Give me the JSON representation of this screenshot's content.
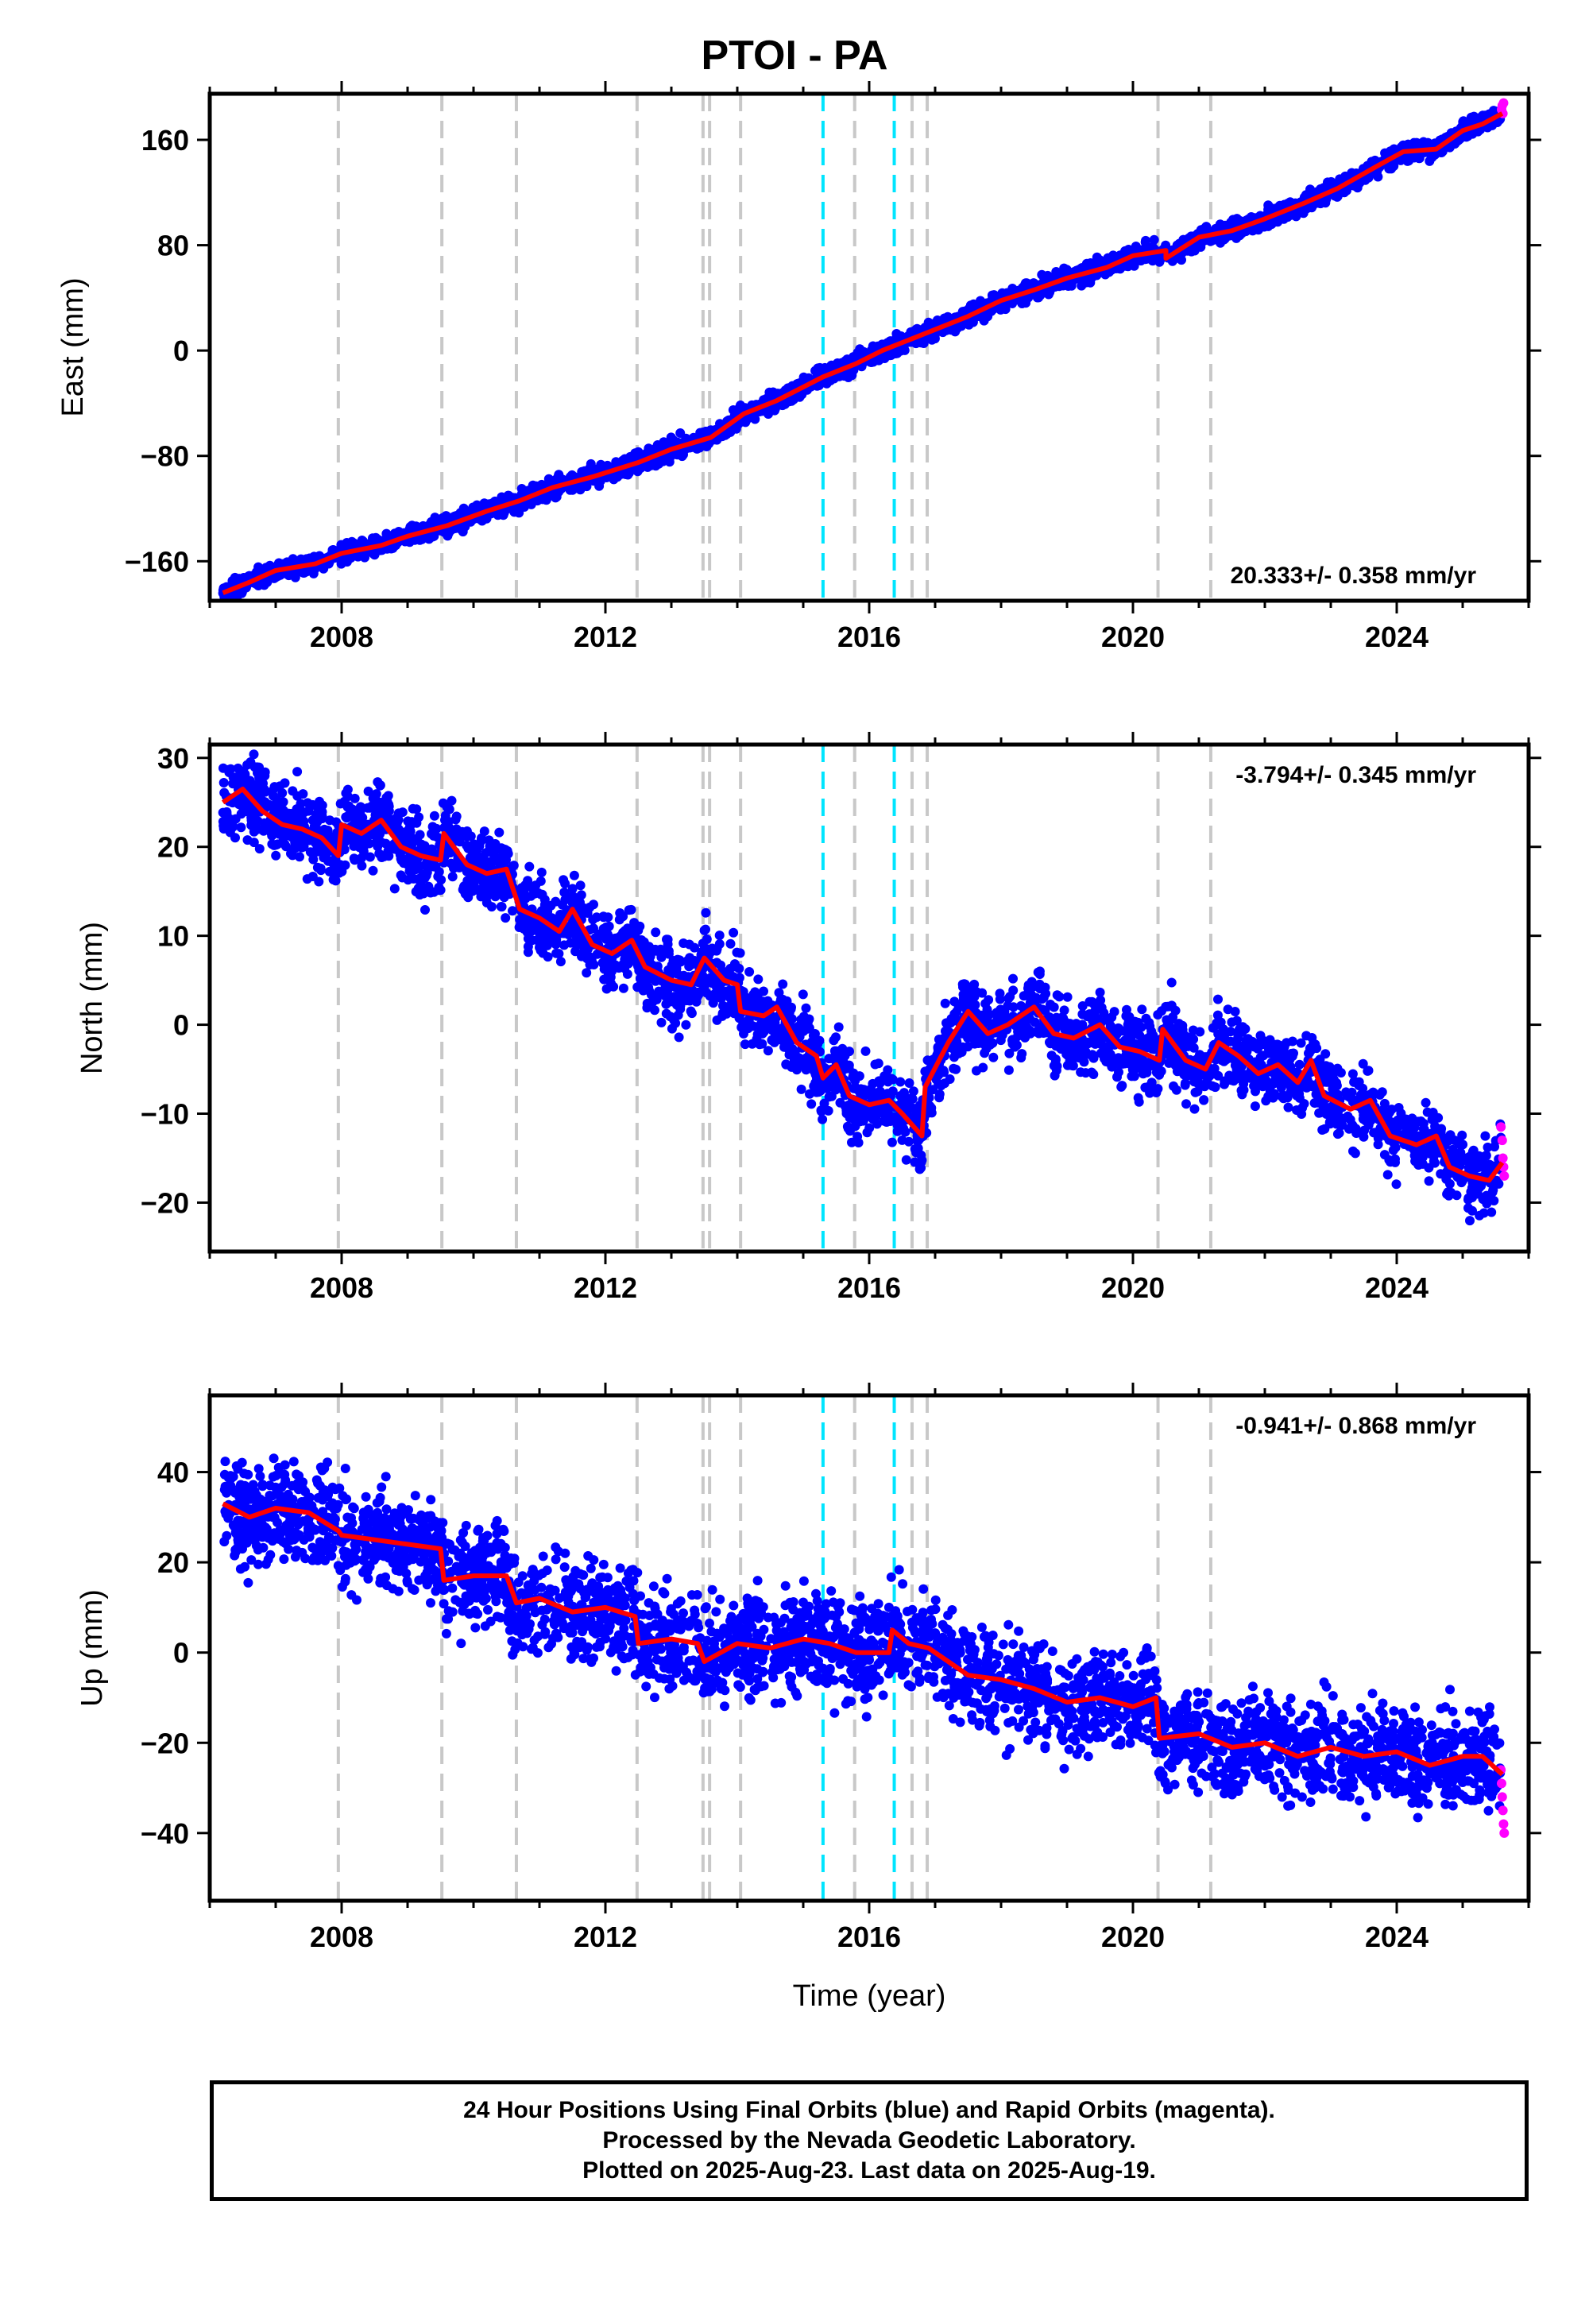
{
  "title": "PTOI - PA",
  "footer": {
    "line1": "24 Hour Positions Using Final Orbits (blue) and Rapid Orbits (magenta).",
    "line2": "Processed by the Nevada Geodetic Laboratory.",
    "line3": "Plotted on 2025-Aug-23. Last data on 2025-Aug-19."
  },
  "colors": {
    "final_orbits": "#0000ff",
    "rapid_orbits": "#ff00ff",
    "fit_line": "#ff0000",
    "equipment_change": "#c8c8c8",
    "earthquake": "#00e5ff"
  },
  "chart_data": [
    {
      "type": "scatter",
      "name": "east",
      "ylabel": "East (mm)",
      "xlabel": "",
      "xlim": [
        2006.0,
        2026.0
      ],
      "ylim": [
        -190,
        195
      ],
      "x_ticks": [
        2008,
        2012,
        2016,
        2020,
        2024
      ],
      "y_ticks": [
        -160,
        -80,
        0,
        80,
        160
      ],
      "rate_label": "20.333+/- 0.358 mm/yr",
      "rate_position": "bottom-right",
      "trend": [
        [
          2006.2,
          -184
        ],
        [
          2006.6,
          -176
        ],
        [
          2007.0,
          -167
        ],
        [
          2007.6,
          -162
        ],
        [
          2008.0,
          -154
        ],
        [
          2008.6,
          -148
        ],
        [
          2009.0,
          -141
        ],
        [
          2009.6,
          -133
        ],
        [
          2010.2,
          -122
        ],
        [
          2010.7,
          -114
        ],
        [
          2011.2,
          -104
        ],
        [
          2011.8,
          -96
        ],
        [
          2012.5,
          -85
        ],
        [
          2013.0,
          -75
        ],
        [
          2013.6,
          -66
        ],
        [
          2014.1,
          -48
        ],
        [
          2014.6,
          -38
        ],
        [
          2015.3,
          -20
        ],
        [
          2015.8,
          -10
        ],
        [
          2016.2,
          0
        ],
        [
          2016.8,
          12
        ],
        [
          2017.5,
          26
        ],
        [
          2018.0,
          38
        ],
        [
          2018.5,
          46
        ],
        [
          2019.0,
          55
        ],
        [
          2019.6,
          63
        ],
        [
          2020.0,
          72
        ],
        [
          2020.5,
          76
        ],
        [
          2020.5,
          70
        ],
        [
          2021.0,
          86
        ],
        [
          2021.5,
          91
        ],
        [
          2022.0,
          100
        ],
        [
          2022.6,
          112
        ],
        [
          2023.1,
          123
        ],
        [
          2023.7,
          140
        ],
        [
          2024.1,
          151
        ],
        [
          2024.6,
          153
        ],
        [
          2025.0,
          167
        ],
        [
          2025.3,
          172
        ],
        [
          2025.6,
          180
        ]
      ],
      "scatter_spread": 3.5,
      "rapid_points": [
        [
          2025.59,
          183
        ],
        [
          2025.6,
          186
        ],
        [
          2025.61,
          180
        ],
        [
          2025.62,
          188
        ]
      ]
    },
    {
      "type": "scatter",
      "name": "north",
      "ylabel": "North (mm)",
      "xlabel": "",
      "xlim": [
        2006.0,
        2026.0
      ],
      "ylim": [
        -25.5,
        31.5
      ],
      "x_ticks": [
        2008,
        2012,
        2016,
        2020,
        2024
      ],
      "y_ticks": [
        -20,
        -10,
        0,
        10,
        20,
        30
      ],
      "rate_label": "-3.794+/- 0.345 mm/yr",
      "rate_position": "top-right",
      "trend": [
        [
          2006.2,
          25
        ],
        [
          2006.5,
          26.5
        ],
        [
          2006.8,
          24
        ],
        [
          2007.1,
          22.5
        ],
        [
          2007.4,
          22
        ],
        [
          2007.7,
          21
        ],
        [
          2007.95,
          19
        ],
        [
          2008.0,
          22.5
        ],
        [
          2008.3,
          21.5
        ],
        [
          2008.6,
          23
        ],
        [
          2008.9,
          20
        ],
        [
          2009.2,
          19
        ],
        [
          2009.5,
          18.5
        ],
        [
          2009.55,
          21.5
        ],
        [
          2009.9,
          18
        ],
        [
          2010.2,
          17
        ],
        [
          2010.5,
          17.5
        ],
        [
          2010.7,
          13
        ],
        [
          2011.0,
          12
        ],
        [
          2011.3,
          10.5
        ],
        [
          2011.5,
          13
        ],
        [
          2011.8,
          9
        ],
        [
          2012.1,
          8
        ],
        [
          2012.4,
          9.5
        ],
        [
          2012.6,
          6.5
        ],
        [
          2013.0,
          5
        ],
        [
          2013.3,
          4.5
        ],
        [
          2013.5,
          7.5
        ],
        [
          2013.8,
          5
        ],
        [
          2014.0,
          4.5
        ],
        [
          2014.05,
          1.5
        ],
        [
          2014.4,
          1
        ],
        [
          2014.6,
          2
        ],
        [
          2014.9,
          -2
        ],
        [
          2015.2,
          -3.5
        ],
        [
          2015.3,
          -6
        ],
        [
          2015.5,
          -4.5
        ],
        [
          2015.7,
          -8
        ],
        [
          2016.0,
          -9
        ],
        [
          2016.3,
          -8.5
        ],
        [
          2016.5,
          -10
        ],
        [
          2016.8,
          -12.5
        ],
        [
          2016.85,
          -7
        ],
        [
          2017.2,
          -2
        ],
        [
          2017.5,
          1.5
        ],
        [
          2017.8,
          -1
        ],
        [
          2018.1,
          0
        ],
        [
          2018.5,
          2
        ],
        [
          2018.8,
          -1
        ],
        [
          2019.1,
          -1.5
        ],
        [
          2019.5,
          0
        ],
        [
          2019.8,
          -2.5
        ],
        [
          2020.1,
          -3
        ],
        [
          2020.4,
          -4
        ],
        [
          2020.45,
          -0.5
        ],
        [
          2020.8,
          -4
        ],
        [
          2021.1,
          -5
        ],
        [
          2021.3,
          -2
        ],
        [
          2021.6,
          -3.5
        ],
        [
          2021.9,
          -5.5
        ],
        [
          2022.2,
          -4.5
        ],
        [
          2022.5,
          -6.5
        ],
        [
          2022.7,
          -4
        ],
        [
          2022.9,
          -8
        ],
        [
          2023.3,
          -9.5
        ],
        [
          2023.6,
          -8.5
        ],
        [
          2023.9,
          -12.5
        ],
        [
          2024.3,
          -13.5
        ],
        [
          2024.6,
          -12.5
        ],
        [
          2024.8,
          -16
        ],
        [
          2025.1,
          -17
        ],
        [
          2025.4,
          -17.5
        ],
        [
          2025.6,
          -15.5
        ]
      ],
      "scatter_spread": 2.2,
      "rapid_points": [
        [
          2025.58,
          -11.5
        ],
        [
          2025.6,
          -13
        ],
        [
          2025.61,
          -15
        ],
        [
          2025.62,
          -16
        ],
        [
          2025.63,
          -17
        ]
      ]
    },
    {
      "type": "scatter",
      "name": "up",
      "ylabel": "Up (mm)",
      "xlabel": "Time (year)",
      "xlim": [
        2006.0,
        2026.0
      ],
      "ylim": [
        -55,
        57
      ],
      "x_ticks": [
        2008,
        2012,
        2016,
        2020,
        2024
      ],
      "y_ticks": [
        -40,
        -20,
        0,
        20,
        40
      ],
      "rate_label": "-0.941+/- 0.868 mm/yr",
      "rate_position": "top-right",
      "trend": [
        [
          2006.2,
          33
        ],
        [
          2006.6,
          30
        ],
        [
          2007.0,
          32
        ],
        [
          2007.5,
          31
        ],
        [
          2007.95,
          27
        ],
        [
          2008.0,
          26
        ],
        [
          2008.5,
          25
        ],
        [
          2009.0,
          24
        ],
        [
          2009.5,
          23
        ],
        [
          2009.55,
          16
        ],
        [
          2010.0,
          17
        ],
        [
          2010.5,
          17
        ],
        [
          2010.65,
          11
        ],
        [
          2011.0,
          12
        ],
        [
          2011.5,
          9
        ],
        [
          2012.0,
          10
        ],
        [
          2012.45,
          8
        ],
        [
          2012.5,
          2
        ],
        [
          2013.0,
          3
        ],
        [
          2013.4,
          2
        ],
        [
          2013.5,
          -2
        ],
        [
          2014.0,
          2
        ],
        [
          2014.5,
          1
        ],
        [
          2015.0,
          3
        ],
        [
          2015.4,
          2
        ],
        [
          2015.8,
          0
        ],
        [
          2016.3,
          0
        ],
        [
          2016.35,
          5
        ],
        [
          2016.6,
          2
        ],
        [
          2016.9,
          1
        ],
        [
          2017.5,
          -5
        ],
        [
          2018.0,
          -6
        ],
        [
          2018.5,
          -8
        ],
        [
          2019.0,
          -11
        ],
        [
          2019.5,
          -10
        ],
        [
          2020.0,
          -12
        ],
        [
          2020.35,
          -10
        ],
        [
          2020.4,
          -19
        ],
        [
          2021.0,
          -18
        ],
        [
          2021.5,
          -21
        ],
        [
          2022.0,
          -20
        ],
        [
          2022.5,
          -23
        ],
        [
          2023.0,
          -21
        ],
        [
          2023.5,
          -23
        ],
        [
          2024.0,
          -22
        ],
        [
          2024.5,
          -25
        ],
        [
          2025.0,
          -23
        ],
        [
          2025.3,
          -23
        ],
        [
          2025.6,
          -27
        ]
      ],
      "scatter_spread": 5.5,
      "rapid_points": [
        [
          2025.58,
          -26
        ],
        [
          2025.59,
          -29
        ],
        [
          2025.6,
          -32
        ],
        [
          2025.61,
          -35
        ],
        [
          2025.62,
          -38
        ],
        [
          2025.63,
          -40
        ]
      ]
    }
  ],
  "event_lines": {
    "equipment_change_years": [
      2007.95,
      2009.52,
      2010.65,
      2012.48,
      2013.48,
      2013.58,
      2014.05,
      2015.78,
      2016.65,
      2016.88,
      2020.38,
      2021.18
    ],
    "earthquake_years": [
      2015.3,
      2016.38
    ]
  }
}
